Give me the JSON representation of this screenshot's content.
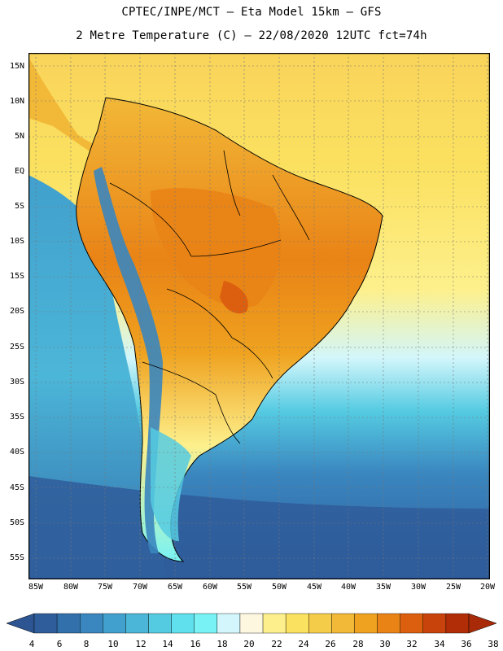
{
  "header": {
    "line1": "CPTEC/INPE/MCT –  Eta Model 15km – GFS",
    "line2": "2 Metre Temperature (C) – 22/08/2020 12UTC fct=74h"
  },
  "axes": {
    "lat_labels": [
      "15N",
      "10N",
      "5N",
      "EQ",
      "5S",
      "10S",
      "15S",
      "20S",
      "25S",
      "30S",
      "35S",
      "40S",
      "45S",
      "50S",
      "55S"
    ],
    "lon_labels": [
      "85W",
      "80W",
      "75W",
      "70W",
      "65W",
      "60W",
      "55W",
      "50W",
      "45W",
      "40W",
      "35W",
      "30W",
      "25W",
      "20W"
    ]
  },
  "colorbar": {
    "labels": [
      "4",
      "6",
      "8",
      "10",
      "12",
      "14",
      "16",
      "18",
      "20",
      "22",
      "24",
      "26",
      "28",
      "30",
      "32",
      "34",
      "36",
      "38"
    ],
    "colors": [
      "#2f5c9a",
      "#3270ac",
      "#3a86bf",
      "#41a0cd",
      "#4cb6d8",
      "#55cbe2",
      "#5fe0ec",
      "#78f2f4",
      "#d2f6fb",
      "#fdf7e0",
      "#fdf08c",
      "#fbe160",
      "#f5cc4a",
      "#f2b837",
      "#efa21f",
      "#e98316",
      "#db5f0e",
      "#c8430b",
      "#b02d08"
    ],
    "under_color": "#2c5592",
    "over_color": "#a82a08"
  },
  "map": {
    "ocean_color_south": "#2f5c9a",
    "ocean_color_pacific": "#4cb6d8",
    "ocean_color_atlantic": "#fbe160",
    "land_hot": "#e98316",
    "land_warm": "#f2b837",
    "andes_cold": "#3a86bf"
  }
}
